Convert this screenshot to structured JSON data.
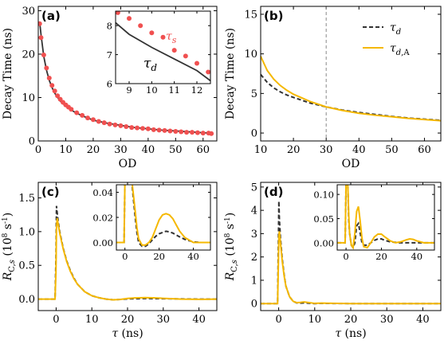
{
  "colors": {
    "dashed": "#333333",
    "solid": "#f5b800",
    "dots": "#f05050",
    "inner_label": "#f05050",
    "vline": "#888888"
  },
  "chart_data": [
    {
      "panel": "(a)",
      "type": "line+scatter",
      "xlabel": "OD",
      "ylabel": "Decay Time (ns)",
      "xlim": [
        0,
        65
      ],
      "ylim": [
        0,
        31
      ],
      "xticks": [
        0,
        10,
        20,
        30,
        40,
        50,
        60
      ],
      "yticks": [
        0,
        10,
        20,
        30
      ],
      "series": [
        {
          "name": "τd",
          "style": "solid-dark",
          "x": [
            0.5,
            1,
            2,
            3,
            4,
            5,
            6,
            8,
            10,
            12,
            14,
            16,
            18,
            20,
            25,
            30,
            35,
            40,
            45,
            50,
            55,
            60,
            63
          ],
          "y": [
            27.5,
            24.5,
            19.5,
            16.3,
            14.0,
            12.3,
            11.0,
            9.2,
            8.0,
            7.1,
            6.4,
            5.8,
            5.3,
            4.8,
            4.1,
            3.6,
            3.1,
            2.8,
            2.5,
            2.3,
            2.1,
            1.9,
            1.8
          ]
        },
        {
          "name": "τs",
          "style": "dots",
          "x": [
            0.5,
            1,
            2,
            3,
            4,
            5,
            6,
            7,
            8,
            9,
            10,
            11,
            12,
            14,
            16,
            18,
            20,
            22,
            24,
            26,
            28,
            30,
            32,
            34,
            36,
            38,
            40,
            42,
            44,
            46,
            48,
            50,
            52,
            54,
            56,
            58,
            60,
            62,
            63
          ],
          "y": [
            27,
            23.8,
            19.8,
            16.8,
            14.5,
            12.8,
            11.5,
            10.4,
            9.6,
            8.9,
            8.3,
            7.8,
            7.3,
            6.5,
            5.9,
            5.3,
            4.9,
            4.5,
            4.2,
            3.9,
            3.7,
            3.5,
            3.3,
            3.1,
            3.0,
            2.9,
            2.8,
            2.6,
            2.5,
            2.4,
            2.3,
            2.2,
            2.1,
            2.0,
            2.0,
            1.9,
            1.8,
            1.8,
            1.7
          ]
        }
      ],
      "inset": {
        "xlim": [
          8.4,
          12.6
        ],
        "ylim": [
          6,
          8.5
        ],
        "xticks": [
          9,
          10,
          11,
          12
        ],
        "yticks": [
          6,
          7,
          8
        ],
        "label_s": "τs",
        "label_d": "τd",
        "series": [
          {
            "name": "τd",
            "style": "solid-dark",
            "x": [
              8.4,
              9,
              10,
              11,
              12,
              12.6
            ],
            "y": [
              8.1,
              7.7,
              7.25,
              6.85,
              6.45,
              6.1
            ]
          },
          {
            "name": "τs",
            "style": "dots",
            "x": [
              8.5,
              9,
              9.5,
              10,
              10.5,
              11,
              11.5,
              12,
              12.5
            ],
            "y": [
              8.45,
              8.25,
              8.0,
              7.75,
              7.6,
              7.15,
              6.95,
              6.7,
              6.4
            ]
          }
        ]
      }
    },
    {
      "panel": "(b)",
      "type": "line",
      "xlabel": "OD",
      "ylabel": "Decay Time (ns)",
      "xlim": [
        10,
        65
      ],
      "ylim": [
        -1,
        16
      ],
      "xticks": [
        10,
        20,
        30,
        40,
        50,
        60
      ],
      "yticks": [
        0,
        5,
        10,
        15
      ],
      "vline_x": 30,
      "legend": {
        "position": "top-right",
        "entries": [
          "τd",
          "τd,A"
        ]
      },
      "series": [
        {
          "name": "τd",
          "style": "dashed",
          "x": [
            10,
            12,
            14,
            16,
            18,
            20,
            25,
            30,
            35,
            40,
            45,
            50,
            55,
            60,
            65
          ],
          "y": [
            7.4,
            6.4,
            5.7,
            5.2,
            4.8,
            4.5,
            3.8,
            3.3,
            2.9,
            2.6,
            2.35,
            2.1,
            1.9,
            1.75,
            1.6
          ]
        },
        {
          "name": "τd,A",
          "style": "solid",
          "x": [
            10,
            12,
            14,
            16,
            18,
            20,
            25,
            30,
            35,
            40,
            45,
            50,
            55,
            60,
            65
          ],
          "y": [
            9.7,
            7.9,
            6.8,
            6.0,
            5.4,
            4.9,
            4.0,
            3.3,
            2.85,
            2.5,
            2.25,
            2.05,
            1.85,
            1.7,
            1.55
          ]
        }
      ]
    },
    {
      "panel": "(c)",
      "type": "line",
      "xlabel": "τ (ns)",
      "ylabel": "RC,s (10⁸ s⁻¹)",
      "xlim": [
        -5,
        45
      ],
      "ylim": [
        -0.17,
        1.73
      ],
      "xticks": [
        0,
        10,
        20,
        30,
        40
      ],
      "yticks": [
        0.0,
        0.5,
        1.0,
        1.5
      ],
      "series": [
        {
          "name": "dashed",
          "style": "dashed",
          "x": [
            -5,
            -0.3,
            -0.05,
            0.1,
            0.3,
            0.6,
            1,
            2,
            3,
            4,
            5,
            6,
            8,
            10,
            12,
            14,
            16,
            18,
            20,
            25,
            30,
            35,
            40,
            45
          ],
          "y": [
            0,
            0,
            0.6,
            1.38,
            1.28,
            1.14,
            1.0,
            0.75,
            0.56,
            0.42,
            0.31,
            0.22,
            0.11,
            0.05,
            0.02,
            0.0,
            -0.01,
            -0.005,
            0.003,
            0.009,
            0.006,
            0.002,
            0.0,
            0.0
          ]
        },
        {
          "name": "solid",
          "style": "solid",
          "x": [
            -5,
            -0.3,
            -0.05,
            0.1,
            0.3,
            0.6,
            1,
            2,
            3,
            4,
            5,
            6,
            8,
            10,
            12,
            14,
            16,
            18,
            20,
            22,
            25,
            28,
            30,
            35,
            40,
            45
          ],
          "y": [
            0,
            0,
            0.4,
            1.05,
            1.2,
            1.1,
            0.98,
            0.74,
            0.55,
            0.41,
            0.3,
            0.22,
            0.11,
            0.05,
            0.02,
            0.0,
            -0.01,
            -0.005,
            0.01,
            0.018,
            0.022,
            0.018,
            0.012,
            0.0,
            -0.004,
            0.0
          ]
        }
      ],
      "inset": {
        "xlim": [
          -5,
          50
        ],
        "ylim": [
          -0.006,
          0.046
        ],
        "xticks": [
          0,
          20,
          40
        ],
        "yticks": [
          0.0,
          0.02,
          0.04
        ],
        "series": [
          {
            "name": "dashed",
            "style": "dashed",
            "x": [
              -5,
              -0.5,
              0,
              0.5,
              2,
              4,
              6,
              7,
              8,
              10,
              12,
              14,
              16,
              18,
              20,
              22,
              24,
              26,
              28,
              30,
              32,
              35,
              40,
              45,
              50
            ],
            "y": [
              0,
              0,
              0.05,
              0.05,
              0.05,
              0.048,
              0.02,
              0.008,
              0.0,
              -0.003,
              -0.003,
              -0.001,
              0.002,
              0.005,
              0.007,
              0.008,
              0.009,
              0.0085,
              0.0075,
              0.006,
              0.0045,
              0.0025,
              0.0005,
              0.0,
              0.0
            ]
          },
          {
            "name": "solid",
            "style": "solid",
            "x": [
              -5,
              -0.5,
              0,
              0.5,
              2,
              4,
              6,
              7,
              8,
              10,
              12,
              14,
              16,
              18,
              20,
              22,
              24,
              26,
              28,
              30,
              32,
              35,
              40,
              45,
              50
            ],
            "y": [
              0,
              0,
              0.05,
              0.05,
              0.05,
              0.05,
              0.025,
              0.012,
              0.003,
              -0.002,
              -0.002,
              0.0,
              0.004,
              0.011,
              0.018,
              0.022,
              0.023,
              0.022,
              0.019,
              0.014,
              0.009,
              0.004,
              0.0,
              0.0,
              0.0
            ]
          }
        ]
      }
    },
    {
      "panel": "(d)",
      "type": "line",
      "xlabel": "τ (ns)",
      "ylabel": "RC,s (10⁸ s⁻¹)",
      "xlim": [
        -5,
        45
      ],
      "ylim": [
        -0.3,
        5.2
      ],
      "xticks": [
        0,
        10,
        20,
        30,
        40
      ],
      "yticks": [
        0,
        1,
        2,
        3,
        4,
        5
      ],
      "series": [
        {
          "name": "dashed",
          "style": "dashed",
          "x": [
            -5,
            -0.3,
            -0.05,
            0.05,
            0.2,
            0.5,
            1,
            1.5,
            2,
            3,
            4,
            5,
            6,
            7,
            8,
            10,
            12,
            15,
            20,
            45
          ],
          "y": [
            0,
            0,
            3.0,
            4.4,
            3.6,
            2.8,
            1.9,
            1.25,
            0.75,
            0.3,
            0.1,
            0.03,
            0.02,
            0.03,
            0.02,
            0.0,
            0.01,
            0.005,
            0.0,
            0.0
          ]
        },
        {
          "name": "solid",
          "style": "solid",
          "x": [
            -5,
            -0.3,
            -0.05,
            0.05,
            0.2,
            0.5,
            1,
            1.5,
            2,
            3,
            4,
            5,
            6,
            7,
            8,
            10,
            12,
            15,
            20,
            45
          ],
          "y": [
            0,
            0,
            2.0,
            2.9,
            3.1,
            2.6,
            1.8,
            1.2,
            0.75,
            0.3,
            0.1,
            0.04,
            0.05,
            0.07,
            0.05,
            0.01,
            0.02,
            0.01,
            0.0,
            0.0
          ]
        }
      ],
      "inset": {
        "xlim": [
          -5,
          50
        ],
        "ylim": [
          -0.015,
          0.12
        ],
        "xticks": [
          0,
          20,
          40
        ],
        "yticks": [
          0.0,
          0.05,
          0.1
        ],
        "series": [
          {
            "name": "dashed",
            "style": "dashed",
            "x": [
              -5,
              -0.5,
              0,
              0.5,
              1,
              1.5,
              2,
              3,
              4,
              5,
              6,
              7,
              8,
              9,
              10,
              12,
              14,
              16,
              18,
              20,
              22,
              25,
              30,
              35,
              40,
              45,
              50
            ],
            "y": [
              0,
              0,
              0.12,
              0.12,
              0.12,
              0.05,
              0.02,
              -0.005,
              -0.01,
              0.0,
              0.035,
              0.04,
              0.02,
              0.0,
              -0.005,
              -0.005,
              0.0,
              0.005,
              0.008,
              0.008,
              0.005,
              0.002,
              0.0,
              0.0,
              0.0,
              0.0,
              0.0
            ]
          },
          {
            "name": "solid",
            "style": "solid",
            "x": [
              -5,
              -0.5,
              0,
              0.5,
              1,
              1.5,
              2,
              3,
              4,
              5,
              6,
              7,
              8,
              9,
              10,
              12,
              14,
              16,
              18,
              20,
              22,
              25,
              28,
              31,
              34,
              36,
              38,
              40,
              44,
              50
            ],
            "y": [
              0,
              0,
              0.12,
              0.12,
              0.12,
              0.06,
              0.02,
              -0.005,
              -0.01,
              0.02,
              0.065,
              0.075,
              0.045,
              0.01,
              -0.008,
              -0.01,
              0.0,
              0.012,
              0.018,
              0.018,
              0.012,
              0.004,
              0.0,
              0.002,
              0.006,
              0.008,
              0.007,
              0.004,
              0.0,
              0.0
            ]
          }
        ]
      }
    }
  ]
}
